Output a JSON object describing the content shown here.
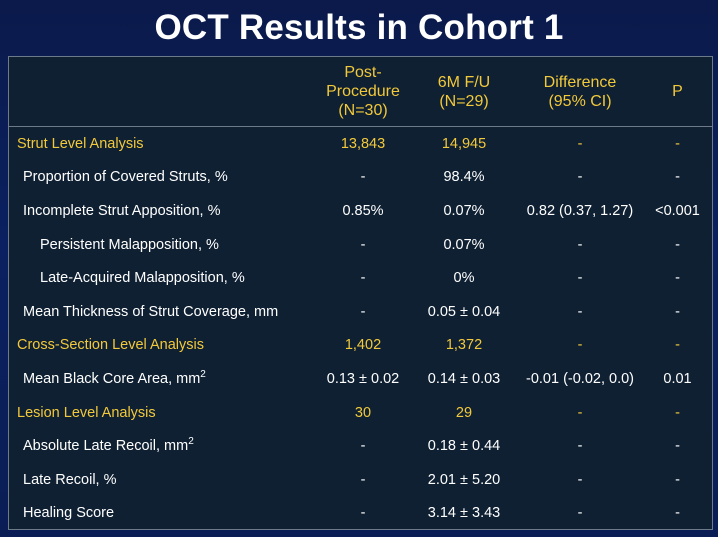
{
  "title": "OCT Results in Cohort 1",
  "headers": {
    "post_procedure": "Post-\nProcedure\n(N=30)",
    "followup": "6M F/U\n(N=29)",
    "difference": "Difference\n(95% CI)",
    "p": "P"
  },
  "rows": [
    {
      "label": "Strut Level Analysis",
      "post": "13,843",
      "fu": "14,945",
      "diff": "-",
      "p": "-"
    },
    {
      "label": "Proportion of Covered Struts, %",
      "post": "-",
      "fu": "98.4%",
      "diff": "-",
      "p": "-"
    },
    {
      "label": "Incomplete Strut Apposition, %",
      "post": "0.85%",
      "fu": "0.07%",
      "diff": "0.82 (0.37, 1.27)",
      "p": "<0.001"
    },
    {
      "label": "Persistent Malapposition, %",
      "post": "-",
      "fu": "0.07%",
      "diff": "-",
      "p": "-"
    },
    {
      "label": "Late-Acquired Malapposition, %",
      "post": "-",
      "fu": "0%",
      "diff": "-",
      "p": "-"
    },
    {
      "label": "Mean Thickness of Strut Coverage, mm",
      "post": "-",
      "fu": "0.05 ± 0.04",
      "diff": "-",
      "p": "-"
    },
    {
      "label": "Cross-Section Level Analysis",
      "post": "1,402",
      "fu": "1,372",
      "diff": "-",
      "p": "-"
    },
    {
      "label": "Mean Black Core Area, mm",
      "label_sup": "2",
      "post": "0.13 ± 0.02",
      "fu": "0.14 ± 0.03",
      "diff": "-0.01 (-0.02, 0.0)",
      "p": "0.01"
    },
    {
      "label": "Lesion Level Analysis",
      "post": "30",
      "fu": "29",
      "diff": "-",
      "p": "-"
    },
    {
      "label": "Absolute Late Recoil, mm",
      "label_sup": "2",
      "post": "-",
      "fu": "0.18 ± 0.44",
      "diff": "-",
      "p": "-"
    },
    {
      "label": "Late Recoil, %",
      "post": "-",
      "fu": "2.01 ± 5.20",
      "diff": "-",
      "p": "-"
    },
    {
      "label": "Healing Score",
      "post": "-",
      "fu": "3.14 ± 3.43",
      "diff": "-",
      "p": "-"
    }
  ]
}
